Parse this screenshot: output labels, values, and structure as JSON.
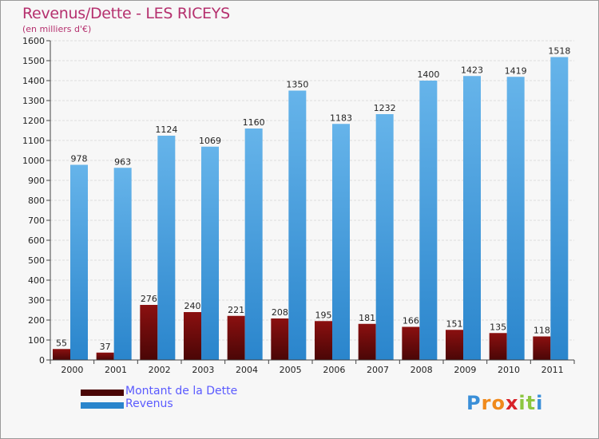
{
  "title": "Revenus/Dette - LES RICEYS",
  "subtitle": "(en milliers d'€)",
  "colors": {
    "debt_top": "#8b1010",
    "debt_bottom": "#4a0606",
    "revenue_top": "#66b4ea",
    "revenue_bottom": "#2a85cc",
    "title": "#b5306e",
    "legend_text": "#5a5aff"
  },
  "chart_data": {
    "type": "bar",
    "categories": [
      "2000",
      "2001",
      "2002",
      "2003",
      "2004",
      "2005",
      "2006",
      "2007",
      "2008",
      "2009",
      "2010",
      "2011"
    ],
    "series": [
      {
        "name": "Montant de la Dette",
        "values": [
          55,
          37,
          276,
          240,
          221,
          208,
          195,
          181,
          166,
          151,
          135,
          118
        ]
      },
      {
        "name": "Revenus",
        "values": [
          978,
          963,
          1124,
          1069,
          1160,
          1350,
          1183,
          1232,
          1400,
          1423,
          1419,
          1518
        ]
      }
    ],
    "ylim": [
      0,
      1600
    ],
    "yticks": [
      0,
      100,
      200,
      300,
      400,
      500,
      600,
      700,
      800,
      900,
      1000,
      1100,
      1200,
      1300,
      1400,
      1500,
      1600
    ],
    "grid": true,
    "legend_position": "bottom-left"
  },
  "legend": [
    {
      "label": "Montant de la Dette"
    },
    {
      "label": "Revenus"
    }
  ],
  "logo": {
    "letters": [
      {
        "ch": "P",
        "color": "#3a8fd8"
      },
      {
        "ch": "r",
        "color": "#f08a1c"
      },
      {
        "ch": "o",
        "color": "#f08a1c"
      },
      {
        "ch": "x",
        "color": "#d8232a"
      },
      {
        "ch": "i",
        "color": "#8cc63f"
      },
      {
        "ch": "t",
        "color": "#8cc63f"
      },
      {
        "ch": "i",
        "color": "#3a8fd8"
      }
    ]
  }
}
